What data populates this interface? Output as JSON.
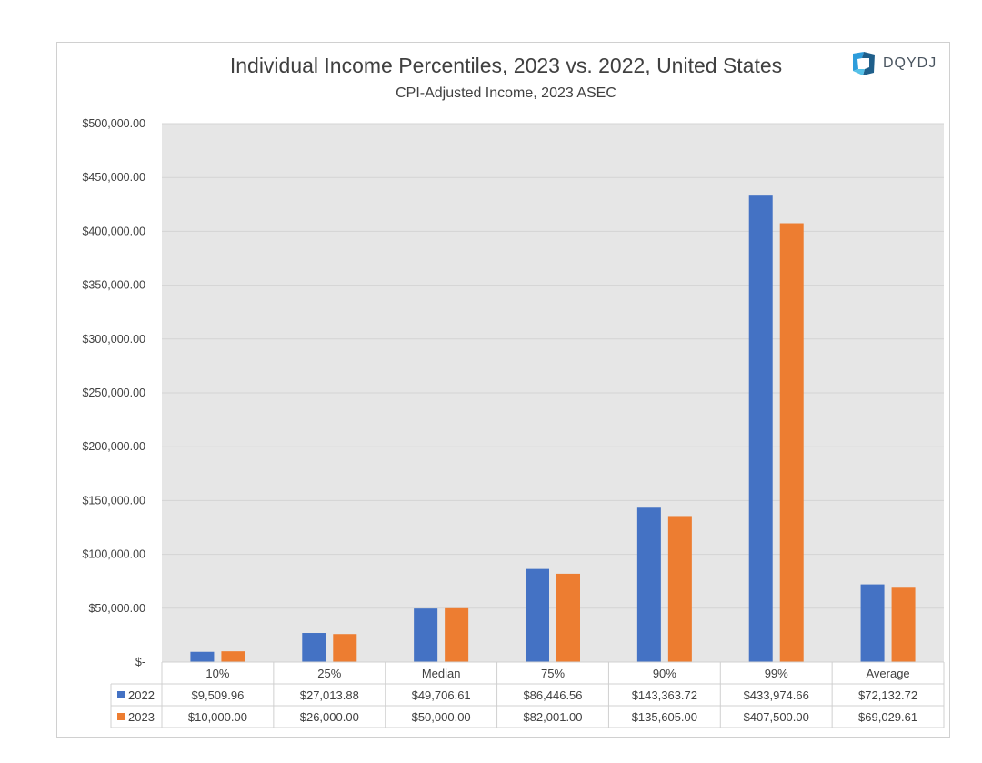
{
  "chart_data": {
    "type": "bar",
    "title": "Individual Income Percentiles, 2023 vs. 2022, United States",
    "subtitle": "CPI-Adjusted Income, 2023 ASEC",
    "categories": [
      "10%",
      "25%",
      "Median",
      "75%",
      "90%",
      "99%",
      "Average"
    ],
    "series": [
      {
        "name": "2022",
        "color": "#4472c4",
        "values": [
          9509.96,
          27013.88,
          49706.61,
          86446.56,
          143363.72,
          433974.66,
          72132.72
        ],
        "labels": [
          "$9,509.96",
          "$27,013.88",
          "$49,706.61",
          "$86,446.56",
          "$143,363.72",
          "$433,974.66",
          "$72,132.72"
        ]
      },
      {
        "name": "2023",
        "color": "#ed7d31",
        "values": [
          10000.0,
          26000.0,
          50000.0,
          82001.0,
          135605.0,
          407500.0,
          69029.61
        ],
        "labels": [
          "$10,000.00",
          "$26,000.00",
          "$50,000.00",
          "$82,001.00",
          "$135,605.00",
          "$407,500.00",
          "$69,029.61"
        ]
      }
    ],
    "ylim": [
      0,
      500000
    ],
    "yticks": [
      0,
      50000,
      100000,
      150000,
      200000,
      250000,
      300000,
      350000,
      400000,
      450000,
      500000
    ],
    "ytick_labels": [
      "$-",
      "$50,000.00",
      "$100,000.00",
      "$150,000.00",
      "$200,000.00",
      "$250,000.00",
      "$300,000.00",
      "$350,000.00",
      "$400,000.00",
      "$450,000.00",
      "$500,000.00"
    ],
    "grid": true,
    "legend": "data-table",
    "plot_background": "#e6e6e6"
  },
  "logo": {
    "text": "DQYDJ",
    "icon": "dqydj-logo-icon"
  }
}
